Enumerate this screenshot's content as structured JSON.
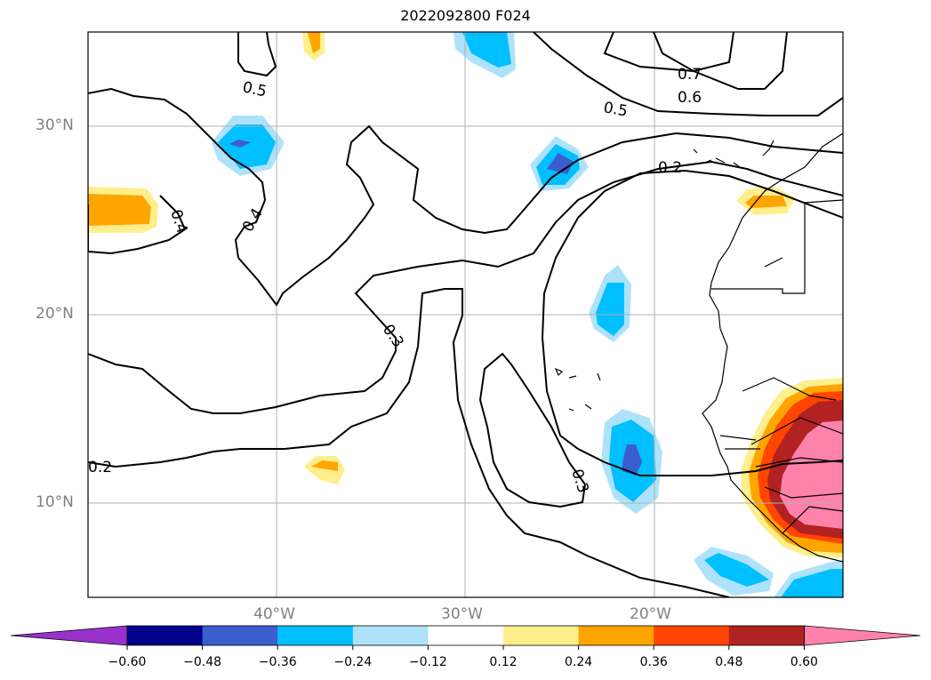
{
  "title": "2022092800 F024",
  "lat_labels": [
    "30°N",
    "20°N",
    "10°N"
  ],
  "lon_labels": [
    "40°W",
    "30°W",
    "20°W"
  ],
  "contour_labels": [
    "0.7",
    "0.6",
    "0.5",
    "0.5",
    "0.4",
    "0.4",
    "0.3",
    "0.3",
    "0.2",
    "0.2"
  ],
  "colorbar": {
    "ticks": [
      "−0.60",
      "−0.48",
      "−0.36",
      "−0.24",
      "−0.12",
      "0.12",
      "0.24",
      "0.36",
      "0.48",
      "0.60"
    ],
    "colors": [
      "#9932cc",
      "#00008b",
      "#3a5fcd",
      "#00bfff",
      "#aee2fa",
      "#ffffff",
      "#ffee8c",
      "#ffa500",
      "#ff4500",
      "#b22222",
      "#ff82ab"
    ]
  }
}
